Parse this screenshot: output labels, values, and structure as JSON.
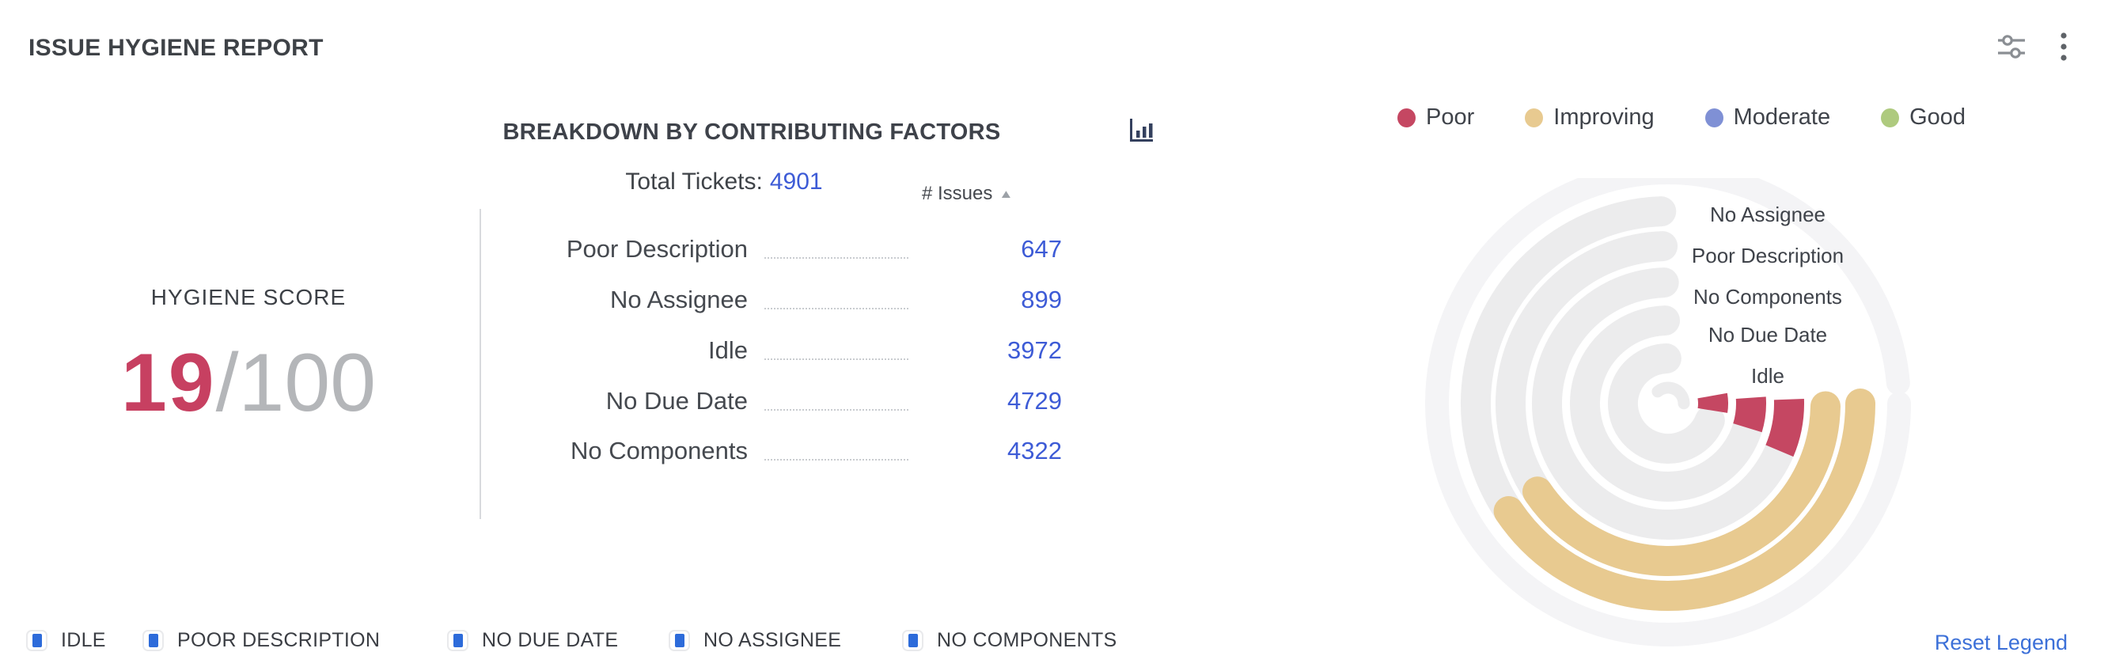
{
  "header": {
    "title": "ISSUE HYGIENE REPORT"
  },
  "panel": {
    "heading": "BREAKDOWN BY CONTRIBUTING FACTORS",
    "total_label": "Total Tickets:",
    "total_value": "4901",
    "issues_header": "# Issues",
    "sort_direction": "asc",
    "rows": [
      {
        "label": "Poor Description",
        "value": "647"
      },
      {
        "label": "No Assignee",
        "value": "899"
      },
      {
        "label": "Idle",
        "value": "3972"
      },
      {
        "label": "No Due Date",
        "value": "4729"
      },
      {
        "label": "No Components",
        "value": "4322"
      }
    ]
  },
  "score": {
    "label": "HYGIENE SCORE",
    "value": "19",
    "suffix": "/100"
  },
  "legend": {
    "items": [
      {
        "label": "Poor",
        "color": "#C54762"
      },
      {
        "label": "Improving",
        "color": "#E8CA90"
      },
      {
        "label": "Moderate",
        "color": "#7F90D5"
      },
      {
        "label": "Good",
        "color": "#AECA7E"
      }
    ]
  },
  "footer": {
    "items": [
      {
        "label": "IDLE"
      },
      {
        "label": "POOR DESCRIPTION"
      },
      {
        "label": "NO DUE DATE"
      },
      {
        "label": "NO ASSIGNEE"
      },
      {
        "label": "NO COMPONENTS"
      }
    ],
    "checkbox_color": "#2D6BDA",
    "reset": "Reset Legend"
  },
  "chart_data": {
    "type": "radial-bar",
    "title": "Breakdown by Contributing Factors",
    "total_tickets": 4901,
    "hygiene_score": 19,
    "score_max": 100,
    "legend_position": "top-right",
    "status_categories": [
      "Poor",
      "Improving",
      "Moderate",
      "Good"
    ],
    "status_colors": {
      "Poor": "#C54762",
      "Improving": "#E8CA90",
      "Moderate": "#7F90D5",
      "Good": "#AECA7E"
    },
    "track_color": "#ECECED",
    "rings": [
      {
        "label": "No Assignee",
        "issues": 899,
        "status": "Improving",
        "color": "#E8CA90",
        "arc_start_deg": 90,
        "arc_sweep_deg": 146
      },
      {
        "label": "Poor Description",
        "issues": 647,
        "status": "Improving",
        "color": "#E8CA90",
        "arc_start_deg": 91,
        "arc_sweep_deg": 145
      },
      {
        "label": "No Components",
        "issues": 4322,
        "status": "Poor",
        "color": "#C54762",
        "arc_start_deg": 88,
        "arc_sweep_deg": 25
      },
      {
        "label": "No Due Date",
        "issues": 4729,
        "status": "Poor",
        "color": "#C54762",
        "arc_start_deg": 86,
        "arc_sweep_deg": 21
      },
      {
        "label": "Idle",
        "issues": 3972,
        "status": "Poor",
        "color": "#C54762",
        "arc_start_deg": 80,
        "arc_sweep_deg": 19
      }
    ]
  }
}
